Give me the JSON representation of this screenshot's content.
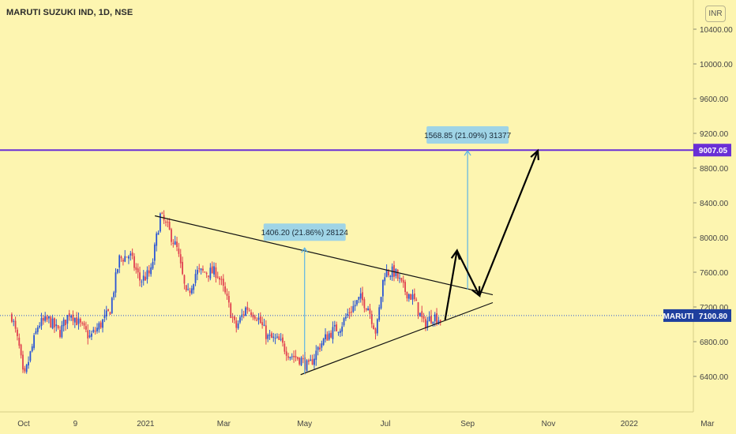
{
  "header": {
    "title": "MARUTI SUZUKI IND, 1D, NSE",
    "currency": "INR"
  },
  "colors": {
    "background": "#fdf5b0",
    "up": "#2a55d4",
    "down": "#e04050",
    "horizontal_line": "#6a2fd6",
    "measure": "#5ab3e6",
    "trend": "#111111"
  },
  "chart_data": {
    "type": "candlestick",
    "title": "MARUTI SUZUKI IND, 1D, NSE",
    "ylim": [
      6000,
      10600
    ],
    "y_ticks": [
      "6400.00",
      "6800.00",
      "7200.00",
      "7600.00",
      "8000.00",
      "8400.00",
      "8800.00",
      "9200.00",
      "9600.00",
      "10000.00",
      "10400.00"
    ],
    "y_tick_values": [
      6400,
      6800,
      7200,
      7600,
      8000,
      8400,
      8800,
      9200,
      9600,
      10000,
      10400
    ],
    "x_ticks": [
      "Oct",
      "9",
      "2021",
      "Mar",
      "May",
      "Jul",
      "Sep",
      "Nov",
      "2022",
      "Mar"
    ],
    "x_tick_dates": [
      "2020-10-01",
      "2020-11-09",
      "2021-01-01",
      "2021-03-01",
      "2021-05-01",
      "2021-07-01",
      "2021-09-01",
      "2021-11-01",
      "2022-01-01",
      "2022-03-01"
    ],
    "price_path": [
      [
        "2020-09-22",
        7100
      ],
      [
        "2020-09-28",
        6700
      ],
      [
        "2020-10-01",
        6350
      ],
      [
        "2020-10-05",
        6600
      ],
      [
        "2020-10-12",
        7000
      ],
      [
        "2020-10-20",
        7050
      ],
      [
        "2020-10-28",
        6900
      ],
      [
        "2020-11-05",
        7150
      ],
      [
        "2020-11-12",
        7000
      ],
      [
        "2020-11-20",
        6850
      ],
      [
        "2020-11-28",
        7000
      ],
      [
        "2020-12-05",
        7150
      ],
      [
        "2020-12-12",
        7750
      ],
      [
        "2020-12-20",
        7800
      ],
      [
        "2020-12-28",
        7500
      ],
      [
        "2021-01-05",
        7600
      ],
      [
        "2021-01-12",
        8250
      ],
      [
        "2021-01-18",
        8100
      ],
      [
        "2021-01-25",
        7850
      ],
      [
        "2021-02-01",
        7300
      ],
      [
        "2021-02-08",
        7600
      ],
      [
        "2021-02-16",
        7600
      ],
      [
        "2021-02-24",
        7600
      ],
      [
        "2021-03-03",
        7300
      ],
      [
        "2021-03-10",
        6950
      ],
      [
        "2021-03-18",
        7200
      ],
      [
        "2021-03-26",
        7100
      ],
      [
        "2021-04-03",
        6850
      ],
      [
        "2021-04-12",
        6800
      ],
      [
        "2021-04-20",
        6650
      ],
      [
        "2021-04-28",
        6600
      ],
      [
        "2021-05-04",
        6500
      ],
      [
        "2021-05-12",
        6750
      ],
      [
        "2021-05-20",
        6900
      ],
      [
        "2021-05-28",
        6980
      ],
      [
        "2021-06-04",
        7150
      ],
      [
        "2021-06-12",
        7300
      ],
      [
        "2021-06-18",
        7200
      ],
      [
        "2021-06-24",
        6900
      ],
      [
        "2021-06-30",
        7600
      ],
      [
        "2021-07-08",
        7600
      ],
      [
        "2021-07-15",
        7400
      ],
      [
        "2021-07-22",
        7300
      ],
      [
        "2021-07-30",
        7000
      ],
      [
        "2021-08-06",
        7100
      ],
      [
        "2021-08-12",
        7050
      ]
    ],
    "horizontal_line": {
      "value": 9007.05,
      "label": "9007.05"
    },
    "last_price": {
      "symbol": "MARUTI",
      "value": 7100.8,
      "label": "7100.80"
    },
    "measurements": [
      {
        "label": "1406.20 (21.86%) 28124",
        "date": "2021-05-01",
        "from": 6430,
        "to": 7880
      },
      {
        "label": "1568.85 (21.09%) 31377",
        "date": "2021-09-01",
        "from": 7400,
        "to": 9000
      }
    ],
    "trendlines": [
      {
        "from": [
          "2021-01-08",
          8250
        ],
        "to": [
          "2021-09-20",
          7340
        ]
      },
      {
        "from": [
          "2021-04-28",
          6420
        ],
        "to": [
          "2021-09-20",
          7250
        ]
      }
    ],
    "projection_path": [
      [
        "2021-08-15",
        7050
      ],
      [
        "2021-08-24",
        7850
      ],
      [
        "2021-09-10",
        7330
      ],
      [
        "2021-10-24",
        9000
      ]
    ],
    "grid": false,
    "legend": "none"
  }
}
